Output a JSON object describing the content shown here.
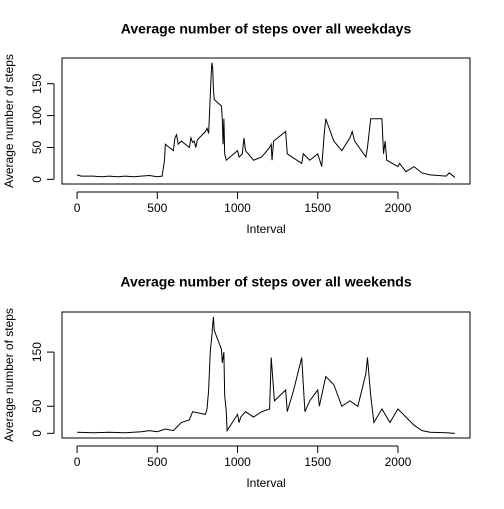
{
  "chart_data": [
    {
      "type": "line",
      "title": "Average number of steps over all weekdays",
      "xlabel": "Interval",
      "ylabel": "Average number of steps",
      "color": "#000000",
      "x": [
        0,
        25,
        50,
        100,
        150,
        200,
        250,
        300,
        350,
        400,
        450,
        500,
        530,
        545,
        550,
        600,
        610,
        620,
        630,
        650,
        700,
        710,
        720,
        730,
        740,
        750,
        800,
        810,
        820,
        830,
        835,
        840,
        845,
        850,
        855,
        900,
        905,
        910,
        915,
        920,
        930,
        1000,
        1010,
        1030,
        1040,
        1050,
        1100,
        1150,
        1200,
        1210,
        1215,
        1225,
        1300,
        1310,
        1400,
        1410,
        1450,
        1500,
        1525,
        1540,
        1550,
        1600,
        1650,
        1700,
        1715,
        1730,
        1800,
        1810,
        1830,
        1900,
        1910,
        1920,
        1930,
        2000,
        2010,
        2050,
        2100,
        2150,
        2200,
        2300,
        2320,
        2355
      ],
      "values": [
        7,
        5,
        5,
        5,
        4,
        5,
        4,
        5,
        4,
        5,
        6,
        4,
        5,
        30,
        55,
        45,
        65,
        70,
        55,
        60,
        50,
        65,
        58,
        60,
        50,
        62,
        75,
        80,
        72,
        130,
        160,
        183,
        175,
        140,
        125,
        115,
        95,
        55,
        95,
        40,
        30,
        45,
        35,
        40,
        65,
        45,
        30,
        35,
        50,
        55,
        30,
        60,
        75,
        40,
        25,
        40,
        30,
        40,
        20,
        70,
        95,
        60,
        45,
        65,
        75,
        60,
        35,
        50,
        95,
        95,
        40,
        60,
        30,
        20,
        25,
        12,
        20,
        10,
        7,
        5,
        10,
        3
      ],
      "xlim": [
        -94,
        2449
      ],
      "ylim": [
        -7.3,
        190.3
      ],
      "xticks": [
        0,
        500,
        1000,
        1500,
        2000
      ],
      "yticks": [
        0,
        50,
        100,
        150
      ]
    },
    {
      "type": "line",
      "title": "Average number of steps over all weekends",
      "xlabel": "Interval",
      "ylabel": "Average number of steps",
      "color": "#000000",
      "x": [
        0,
        100,
        200,
        300,
        400,
        450,
        500,
        550,
        600,
        650,
        700,
        720,
        800,
        810,
        820,
        830,
        840,
        845,
        850,
        855,
        900,
        905,
        915,
        920,
        930,
        935,
        1000,
        1010,
        1020,
        1050,
        1100,
        1150,
        1200,
        1210,
        1230,
        1300,
        1310,
        1350,
        1400,
        1420,
        1450,
        1500,
        1510,
        1550,
        1600,
        1650,
        1700,
        1750,
        1800,
        1810,
        1830,
        1850,
        1900,
        1910,
        1950,
        2000,
        2050,
        2100,
        2150,
        2200,
        2300,
        2355
      ],
      "values": [
        2,
        1,
        2,
        1,
        3,
        5,
        3,
        8,
        5,
        20,
        25,
        40,
        35,
        45,
        80,
        150,
        180,
        200,
        215,
        190,
        155,
        130,
        150,
        70,
        40,
        5,
        35,
        20,
        30,
        40,
        30,
        40,
        45,
        140,
        60,
        80,
        40,
        80,
        140,
        40,
        60,
        80,
        50,
        105,
        90,
        50,
        60,
        50,
        110,
        140,
        70,
        20,
        45,
        40,
        20,
        45,
        30,
        15,
        5,
        2,
        1,
        0
      ],
      "xlim": [
        -94,
        2449
      ],
      "ylim": [
        -8.6,
        224
      ],
      "xticks": [
        0,
        500,
        1000,
        1500,
        2000
      ],
      "yticks": [
        0,
        50,
        150
      ]
    }
  ]
}
